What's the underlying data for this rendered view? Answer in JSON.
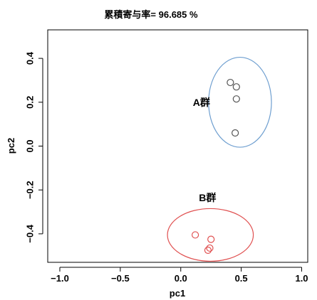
{
  "chart_data": {
    "type": "scatter",
    "title": "累積寄与率= 96.685 %",
    "xlabel": "pc1",
    "ylabel": "pc2",
    "xlim": [
      -1.1,
      1.05
    ],
    "ylim": [
      -0.53,
      0.53
    ],
    "x_ticks": [
      -1.0,
      -0.5,
      0.0,
      0.5,
      1.0
    ],
    "x_tick_labels": [
      "−1.0",
      "−0.5",
      "0.0",
      "0.5",
      "1.0"
    ],
    "y_ticks": [
      -0.4,
      -0.2,
      0.0,
      0.2,
      0.4
    ],
    "y_tick_labels": [
      "−0.4",
      "−0.2",
      "0.0",
      "0.2",
      "0.4"
    ],
    "grid": false,
    "series": [
      {
        "name": "A群",
        "color": "#555555",
        "ellipse_color": "#6f9fd0",
        "ellipse": {
          "cx": 0.49,
          "cy": 0.2,
          "rx": 0.26,
          "ry": 0.205
        },
        "label_pos": [
          0.1,
          0.2
        ],
        "points": [
          [
            0.41,
            0.29
          ],
          [
            0.46,
            0.27
          ],
          [
            0.46,
            0.215
          ],
          [
            0.45,
            0.06
          ]
        ]
      },
      {
        "name": "B群",
        "color": "#e05050",
        "ellipse_color": "#e05050",
        "ellipse": {
          "cx": 0.245,
          "cy": -0.405,
          "rx": 0.355,
          "ry": 0.12
        },
        "label_pos": [
          0.15,
          -0.235
        ],
        "points": [
          [
            0.12,
            -0.405
          ],
          [
            0.25,
            -0.425
          ],
          [
            0.24,
            -0.465
          ],
          [
            0.225,
            -0.475
          ]
        ]
      }
    ]
  }
}
